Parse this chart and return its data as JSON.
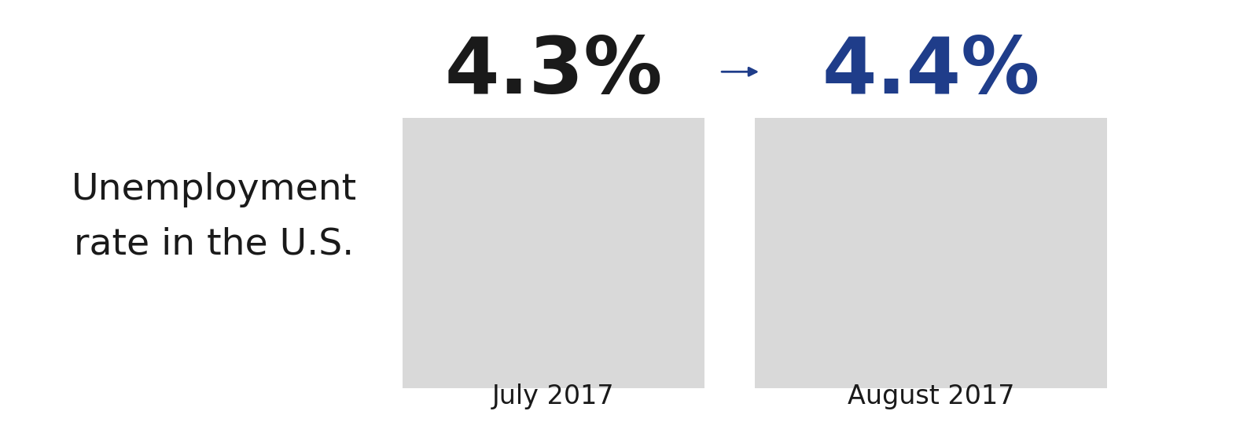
{
  "bar_color": "#d9d9d9",
  "value_label_july": "4.3%",
  "value_label_august": "4.4%",
  "value_color_july": "#1a1a1a",
  "value_color_august": "#1f3d8a",
  "arrow_color": "#1f3d8a",
  "label_line1": "Unemployment",
  "label_line2": "rate in the U.S.",
  "label_color": "#1a1a1a",
  "month_label_july": "July 2017",
  "month_label_august": "August 2017",
  "background_color": "#ffffff",
  "figsize": [
    16.0,
    5.37
  ]
}
